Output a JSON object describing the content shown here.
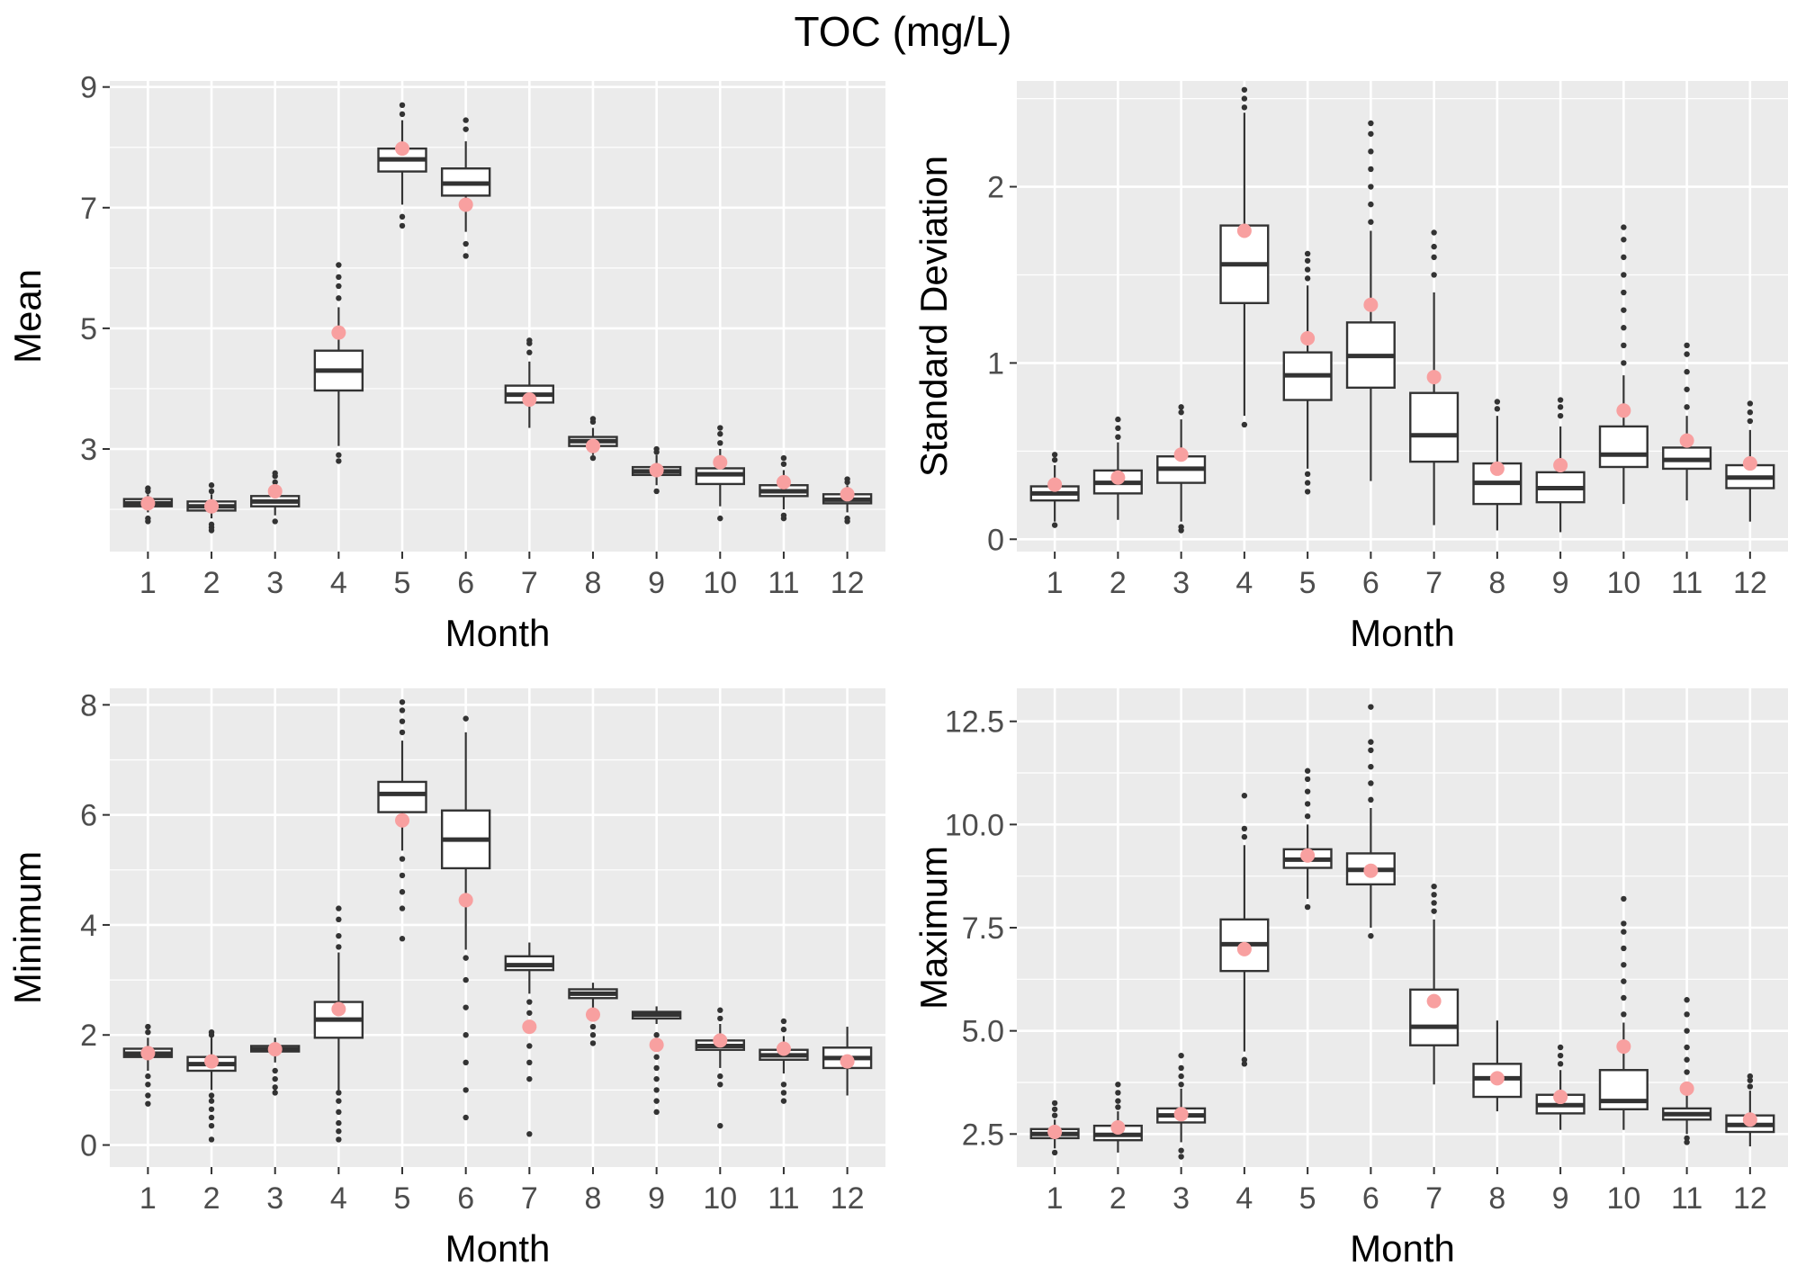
{
  "title": "TOC (mg/L)",
  "colors": {
    "panel": "#ebebeb",
    "grid": "#ffffff",
    "box": "#333333",
    "mean_dot": "#f8a0a0"
  },
  "chart_data": [
    {
      "type": "box",
      "xlabel": "Month",
      "ylabel": "Mean",
      "categories": [
        "1",
        "2",
        "3",
        "4",
        "5",
        "6",
        "7",
        "8",
        "9",
        "10",
        "11",
        "12"
      ],
      "ylim": [
        1.3,
        9.1
      ],
      "yticks": [
        3,
        5,
        7,
        9
      ],
      "yticklabels": [
        "3",
        "5",
        "7",
        "9"
      ],
      "boxes": [
        {
          "q1": 2.05,
          "median": 2.1,
          "q3": 2.17,
          "wlo": 1.95,
          "whi": 2.25,
          "outliers": [
            1.8,
            1.85,
            2.3,
            2.35
          ],
          "mean": 2.1
        },
        {
          "q1": 1.98,
          "median": 2.05,
          "q3": 2.13,
          "wlo": 1.85,
          "whi": 2.25,
          "outliers": [
            1.65,
            1.7,
            1.75,
            2.3,
            2.4
          ],
          "mean": 2.05
        },
        {
          "q1": 2.05,
          "median": 2.13,
          "q3": 2.22,
          "wlo": 1.9,
          "whi": 2.35,
          "outliers": [
            1.8,
            2.45,
            2.55,
            2.6
          ],
          "mean": 2.3
        },
        {
          "q1": 3.97,
          "median": 4.3,
          "q3": 4.63,
          "wlo": 3.05,
          "whi": 5.35,
          "outliers": [
            2.8,
            2.9,
            5.5,
            5.7,
            5.85,
            6.05
          ],
          "mean": 4.93
        },
        {
          "q1": 7.6,
          "median": 7.8,
          "q3": 7.98,
          "wlo": 7.05,
          "whi": 8.45,
          "outliers": [
            6.7,
            6.85,
            8.55,
            8.7
          ],
          "mean": 7.98
        },
        {
          "q1": 7.2,
          "median": 7.4,
          "q3": 7.65,
          "wlo": 6.6,
          "whi": 8.1,
          "outliers": [
            6.2,
            6.4,
            8.3,
            8.45
          ],
          "mean": 7.05
        },
        {
          "q1": 3.77,
          "median": 3.9,
          "q3": 4.05,
          "wlo": 3.35,
          "whi": 4.45,
          "outliers": [
            4.6,
            4.75,
            4.8
          ],
          "mean": 3.82
        },
        {
          "q1": 3.05,
          "median": 3.13,
          "q3": 3.2,
          "wlo": 2.9,
          "whi": 3.35,
          "outliers": [
            2.85,
            3.45,
            3.5
          ],
          "mean": 3.05
        },
        {
          "q1": 2.57,
          "median": 2.63,
          "q3": 2.7,
          "wlo": 2.4,
          "whi": 2.9,
          "outliers": [
            2.3,
            2.95,
            3.0
          ],
          "mean": 2.65
        },
        {
          "q1": 2.42,
          "median": 2.58,
          "q3": 2.68,
          "wlo": 2.05,
          "whi": 3.0,
          "outliers": [
            1.85,
            3.1,
            3.25,
            3.35
          ],
          "mean": 2.78
        },
        {
          "q1": 2.22,
          "median": 2.3,
          "q3": 2.4,
          "wlo": 2.0,
          "whi": 2.65,
          "outliers": [
            1.85,
            1.9,
            2.75,
            2.85
          ],
          "mean": 2.45
        },
        {
          "q1": 2.1,
          "median": 2.16,
          "q3": 2.25,
          "wlo": 1.95,
          "whi": 2.4,
          "outliers": [
            1.8,
            1.85,
            2.45,
            2.5
          ],
          "mean": 2.25
        }
      ]
    },
    {
      "type": "box",
      "xlabel": "Month",
      "ylabel": "Standard Deviation",
      "categories": [
        "1",
        "2",
        "3",
        "4",
        "5",
        "6",
        "7",
        "8",
        "9",
        "10",
        "11",
        "12"
      ],
      "ylim": [
        -0.07,
        2.6
      ],
      "yticks": [
        0,
        1,
        2
      ],
      "yticklabels": [
        "0",
        "1",
        "2"
      ],
      "boxes": [
        {
          "q1": 0.22,
          "median": 0.26,
          "q3": 0.3,
          "wlo": 0.1,
          "whi": 0.42,
          "outliers": [
            0.08,
            0.45,
            0.48
          ],
          "mean": 0.31
        },
        {
          "q1": 0.26,
          "median": 0.32,
          "q3": 0.39,
          "wlo": 0.11,
          "whi": 0.55,
          "outliers": [
            0.58,
            0.63,
            0.68
          ],
          "mean": 0.35
        },
        {
          "q1": 0.32,
          "median": 0.4,
          "q3": 0.47,
          "wlo": 0.1,
          "whi": 0.68,
          "outliers": [
            0.05,
            0.07,
            0.72,
            0.75
          ],
          "mean": 0.48
        },
        {
          "q1": 1.34,
          "median": 1.56,
          "q3": 1.78,
          "wlo": 0.7,
          "whi": 2.42,
          "outliers": [
            0.65,
            2.45,
            2.5,
            2.55
          ],
          "mean": 1.75
        },
        {
          "q1": 0.79,
          "median": 0.93,
          "q3": 1.06,
          "wlo": 0.4,
          "whi": 1.44,
          "outliers": [
            0.27,
            0.32,
            0.37,
            1.48,
            1.53,
            1.58,
            1.62
          ],
          "mean": 1.14
        },
        {
          "q1": 0.86,
          "median": 1.04,
          "q3": 1.23,
          "wlo": 0.33,
          "whi": 1.75,
          "outliers": [
            1.8,
            1.9,
            2.0,
            2.1,
            2.2,
            2.3,
            2.36
          ],
          "mean": 1.33
        },
        {
          "q1": 0.44,
          "median": 0.59,
          "q3": 0.83,
          "wlo": 0.08,
          "whi": 1.4,
          "outliers": [
            1.5,
            1.6,
            1.66,
            1.74
          ],
          "mean": 0.92
        },
        {
          "q1": 0.2,
          "median": 0.32,
          "q3": 0.43,
          "wlo": 0.05,
          "whi": 0.7,
          "outliers": [
            0.74,
            0.78
          ],
          "mean": 0.4
        },
        {
          "q1": 0.21,
          "median": 0.29,
          "q3": 0.38,
          "wlo": 0.04,
          "whi": 0.64,
          "outliers": [
            0.7,
            0.75,
            0.79
          ],
          "mean": 0.42
        },
        {
          "q1": 0.41,
          "median": 0.48,
          "q3": 0.64,
          "wlo": 0.2,
          "whi": 0.93,
          "outliers": [
            1.0,
            1.1,
            1.2,
            1.3,
            1.4,
            1.5,
            1.6,
            1.7,
            1.77
          ],
          "mean": 0.73
        },
        {
          "q1": 0.4,
          "median": 0.45,
          "q3": 0.52,
          "wlo": 0.22,
          "whi": 0.7,
          "outliers": [
            0.75,
            0.85,
            0.95,
            1.05,
            1.1
          ],
          "mean": 0.56
        },
        {
          "q1": 0.29,
          "median": 0.35,
          "q3": 0.42,
          "wlo": 0.1,
          "whi": 0.62,
          "outliers": [
            0.67,
            0.72,
            0.77
          ],
          "mean": 0.43
        }
      ]
    },
    {
      "type": "box",
      "xlabel": "Month",
      "ylabel": "Minimum",
      "categories": [
        "1",
        "2",
        "3",
        "4",
        "5",
        "6",
        "7",
        "8",
        "9",
        "10",
        "11",
        "12"
      ],
      "ylim": [
        -0.4,
        8.3
      ],
      "yticks": [
        0,
        2,
        4,
        6,
        8
      ],
      "yticklabels": [
        "0",
        "2",
        "4",
        "6",
        "8"
      ],
      "boxes": [
        {
          "q1": 1.6,
          "median": 1.66,
          "q3": 1.75,
          "wlo": 1.35,
          "whi": 1.95,
          "outliers": [
            0.75,
            0.9,
            1.1,
            1.25,
            2.05,
            2.15
          ],
          "mean": 1.67
        },
        {
          "q1": 1.35,
          "median": 1.47,
          "q3": 1.6,
          "wlo": 1.0,
          "whi": 1.95,
          "outliers": [
            0.1,
            0.35,
            0.5,
            0.65,
            0.8,
            0.9,
            2.0,
            2.05
          ],
          "mean": 1.52
        },
        {
          "q1": 1.7,
          "median": 1.74,
          "q3": 1.8,
          "wlo": 1.5,
          "whi": 1.95,
          "outliers": [
            0.95,
            1.05,
            1.2,
            1.35
          ],
          "mean": 1.74
        },
        {
          "q1": 1.95,
          "median": 2.28,
          "q3": 2.6,
          "wlo": 1.0,
          "whi": 3.5,
          "outliers": [
            0.1,
            0.25,
            0.4,
            0.6,
            0.8,
            0.95,
            3.6,
            3.8,
            4.1,
            4.3
          ],
          "mean": 2.47
        },
        {
          "q1": 6.05,
          "median": 6.38,
          "q3": 6.6,
          "wlo": 5.35,
          "whi": 7.35,
          "outliers": [
            3.75,
            4.3,
            4.6,
            4.9,
            5.2,
            7.5,
            7.7,
            7.9,
            8.05
          ],
          "mean": 5.9
        },
        {
          "q1": 5.03,
          "median": 5.55,
          "q3": 6.08,
          "wlo": 3.55,
          "whi": 7.5,
          "outliers": [
            0.5,
            1.0,
            1.5,
            2.0,
            2.5,
            3.0,
            3.4,
            7.75
          ],
          "mean": 4.45
        },
        {
          "q1": 3.18,
          "median": 3.27,
          "q3": 3.43,
          "wlo": 2.75,
          "whi": 3.68,
          "outliers": [
            0.2,
            1.2,
            1.5,
            1.8,
            2.1,
            2.4,
            2.6
          ],
          "mean": 2.15
        },
        {
          "q1": 2.67,
          "median": 2.75,
          "q3": 2.83,
          "wlo": 2.45,
          "whi": 2.95,
          "outliers": [
            1.85,
            2.0,
            2.15,
            2.3
          ],
          "mean": 2.37
        },
        {
          "q1": 2.3,
          "median": 2.37,
          "q3": 2.42,
          "wlo": 2.2,
          "whi": 2.52,
          "outliers": [
            0.6,
            0.8,
            1.0,
            1.2,
            1.4,
            1.6,
            1.8,
            2.0
          ],
          "mean": 1.82
        },
        {
          "q1": 1.73,
          "median": 1.8,
          "q3": 1.9,
          "wlo": 1.4,
          "whi": 2.2,
          "outliers": [
            0.35,
            1.1,
            1.25,
            2.3,
            2.45
          ],
          "mean": 1.9
        },
        {
          "q1": 1.55,
          "median": 1.63,
          "q3": 1.73,
          "wlo": 1.3,
          "whi": 1.98,
          "outliers": [
            0.8,
            0.95,
            1.1,
            2.1,
            2.25
          ],
          "mean": 1.75
        },
        {
          "q1": 1.4,
          "median": 1.58,
          "q3": 1.77,
          "wlo": 0.9,
          "whi": 2.15,
          "outliers": [],
          "mean": 1.52
        }
      ]
    },
    {
      "type": "box",
      "xlabel": "Month",
      "ylabel": "Maximum",
      "categories": [
        "1",
        "2",
        "3",
        "4",
        "5",
        "6",
        "7",
        "8",
        "9",
        "10",
        "11",
        "12"
      ],
      "ylim": [
        1.7,
        13.3
      ],
      "yticks": [
        2.5,
        5.0,
        7.5,
        10.0,
        12.5
      ],
      "yticklabels": [
        "2.5",
        "5.0",
        "7.5",
        "10.0",
        "12.5"
      ],
      "boxes": [
        {
          "q1": 2.4,
          "median": 2.5,
          "q3": 2.62,
          "wlo": 2.15,
          "whi": 2.85,
          "outliers": [
            2.05,
            2.95,
            3.1,
            3.25
          ],
          "mean": 2.55
        },
        {
          "q1": 2.35,
          "median": 2.48,
          "q3": 2.7,
          "wlo": 2.05,
          "whi": 3.05,
          "outliers": [
            3.15,
            3.3,
            3.5,
            3.7
          ],
          "mean": 2.66
        },
        {
          "q1": 2.78,
          "median": 2.95,
          "q3": 3.12,
          "wlo": 2.3,
          "whi": 3.6,
          "outliers": [
            1.95,
            2.1,
            3.7,
            3.9,
            4.1,
            4.4
          ],
          "mean": 2.98
        },
        {
          "q1": 6.45,
          "median": 7.1,
          "q3": 7.7,
          "wlo": 4.5,
          "whi": 9.5,
          "outliers": [
            4.2,
            4.3,
            9.7,
            9.9,
            10.7
          ],
          "mean": 6.98
        },
        {
          "q1": 8.95,
          "median": 9.15,
          "q3": 9.4,
          "wlo": 8.2,
          "whi": 10.0,
          "outliers": [
            8.0,
            10.2,
            10.5,
            10.8,
            11.1,
            11.3
          ],
          "mean": 9.25
        },
        {
          "q1": 8.55,
          "median": 8.9,
          "q3": 9.3,
          "wlo": 7.5,
          "whi": 10.4,
          "outliers": [
            7.3,
            10.6,
            11.0,
            11.4,
            11.8,
            12.0,
            12.85
          ],
          "mean": 8.88
        },
        {
          "q1": 4.65,
          "median": 5.1,
          "q3": 6.0,
          "wlo": 3.7,
          "whi": 7.7,
          "outliers": [
            7.9,
            8.1,
            8.3,
            8.5
          ],
          "mean": 5.72
        },
        {
          "q1": 3.4,
          "median": 3.85,
          "q3": 4.2,
          "wlo": 3.05,
          "whi": 5.25,
          "outliers": [],
          "mean": 3.85
        },
        {
          "q1": 3.0,
          "median": 3.2,
          "q3": 3.45,
          "wlo": 2.6,
          "whi": 4.05,
          "outliers": [
            4.2,
            4.4,
            4.6
          ],
          "mean": 3.4
        },
        {
          "q1": 3.1,
          "median": 3.3,
          "q3": 4.05,
          "wlo": 2.6,
          "whi": 5.2,
          "outliers": [
            5.4,
            5.8,
            6.2,
            6.6,
            7.0,
            7.4,
            7.6,
            8.2
          ],
          "mean": 4.62
        },
        {
          "q1": 2.85,
          "median": 2.98,
          "q3": 3.12,
          "wlo": 2.5,
          "whi": 3.5,
          "outliers": [
            2.3,
            2.4,
            3.7,
            4.0,
            4.3,
            4.6,
            5.0,
            5.4,
            5.75
          ],
          "mean": 3.6
        },
        {
          "q1": 2.55,
          "median": 2.72,
          "q3": 2.95,
          "wlo": 2.2,
          "whi": 3.55,
          "outliers": [
            3.65,
            3.8,
            3.9
          ],
          "mean": 2.85
        }
      ]
    }
  ]
}
